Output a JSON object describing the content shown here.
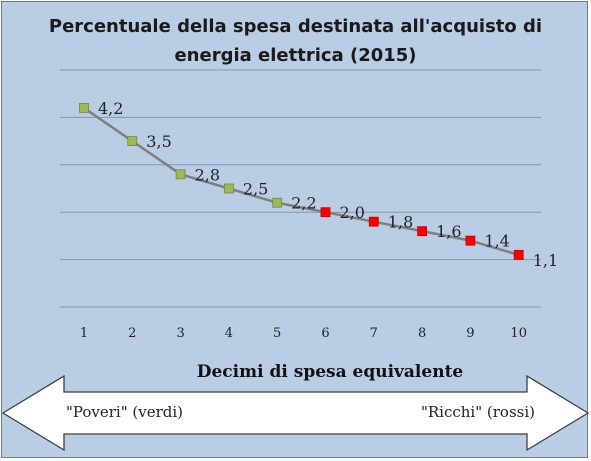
{
  "chart_data": {
    "type": "line",
    "title": "Percentuale della spesa destinata all'acquisto di energia elettrica (2015)",
    "title_lines": [
      "Percentuale della spesa destinata all'acquisto di",
      "energia elettrica (2015)"
    ],
    "xlabel": "Decimi di spesa equivalente",
    "ylabel": "",
    "categories": [
      "1",
      "2",
      "3",
      "4",
      "5",
      "6",
      "7",
      "8",
      "9",
      "10"
    ],
    "values": [
      4.2,
      3.5,
      2.8,
      2.5,
      2.2,
      2.0,
      1.8,
      1.6,
      1.4,
      1.1
    ],
    "data_labels": [
      "4,2",
      "3,5",
      "2,8",
      "2,5",
      "2,2",
      "2,0",
      "1,8",
      "1,6",
      "1,4",
      "1,1"
    ],
    "ylim": [
      0,
      5
    ],
    "grid": true,
    "legend": "none",
    "colors": {
      "line": "#7f7f7f",
      "poor_marker": "#9bbb59",
      "rich_marker": "#ff0000",
      "background": "#b9cde5",
      "gridline": "#8496ad",
      "arrow_fill": "#ffffff"
    },
    "marker_groups": [
      "poor",
      "poor",
      "poor",
      "poor",
      "poor",
      "rich",
      "rich",
      "rich",
      "rich",
      "rich"
    ]
  },
  "annotations": {
    "left": "\"Poveri\" (verdi)",
    "right": "\"Ricchi\" (rossi)"
  }
}
